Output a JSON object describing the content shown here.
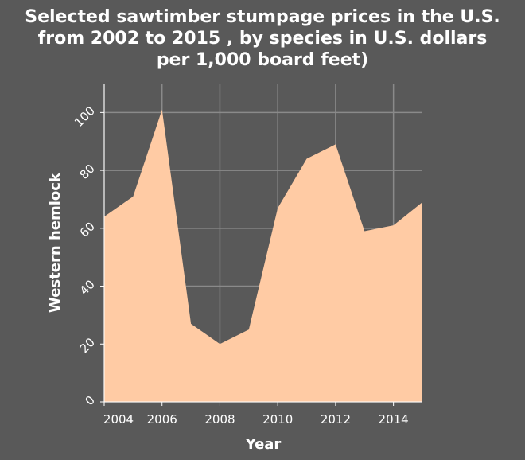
{
  "chart_data": {
    "type": "area",
    "title": "Selected sawtimber stumpage prices in the U.S. from 2002 to 2015 , by species in U.S. dollars per 1,000 board feet)",
    "x_label": "Year",
    "y_label": "Western hemlock",
    "x": [
      2004,
      2005,
      2006,
      2007,
      2008,
      2009,
      2010,
      2011,
      2012,
      2013,
      2014,
      2015
    ],
    "values": [
      64,
      71,
      101,
      27,
      20,
      25,
      67,
      84,
      89,
      59,
      61,
      69
    ],
    "color": "#ffcba4",
    "xlim": [
      2004,
      2015
    ],
    "xticks": [
      2004,
      2006,
      2008,
      2010,
      2012,
      2014
    ],
    "ylim": [
      0,
      110
    ],
    "yticks": [
      0,
      20,
      40,
      60,
      80,
      100
    ],
    "grid": true
  }
}
